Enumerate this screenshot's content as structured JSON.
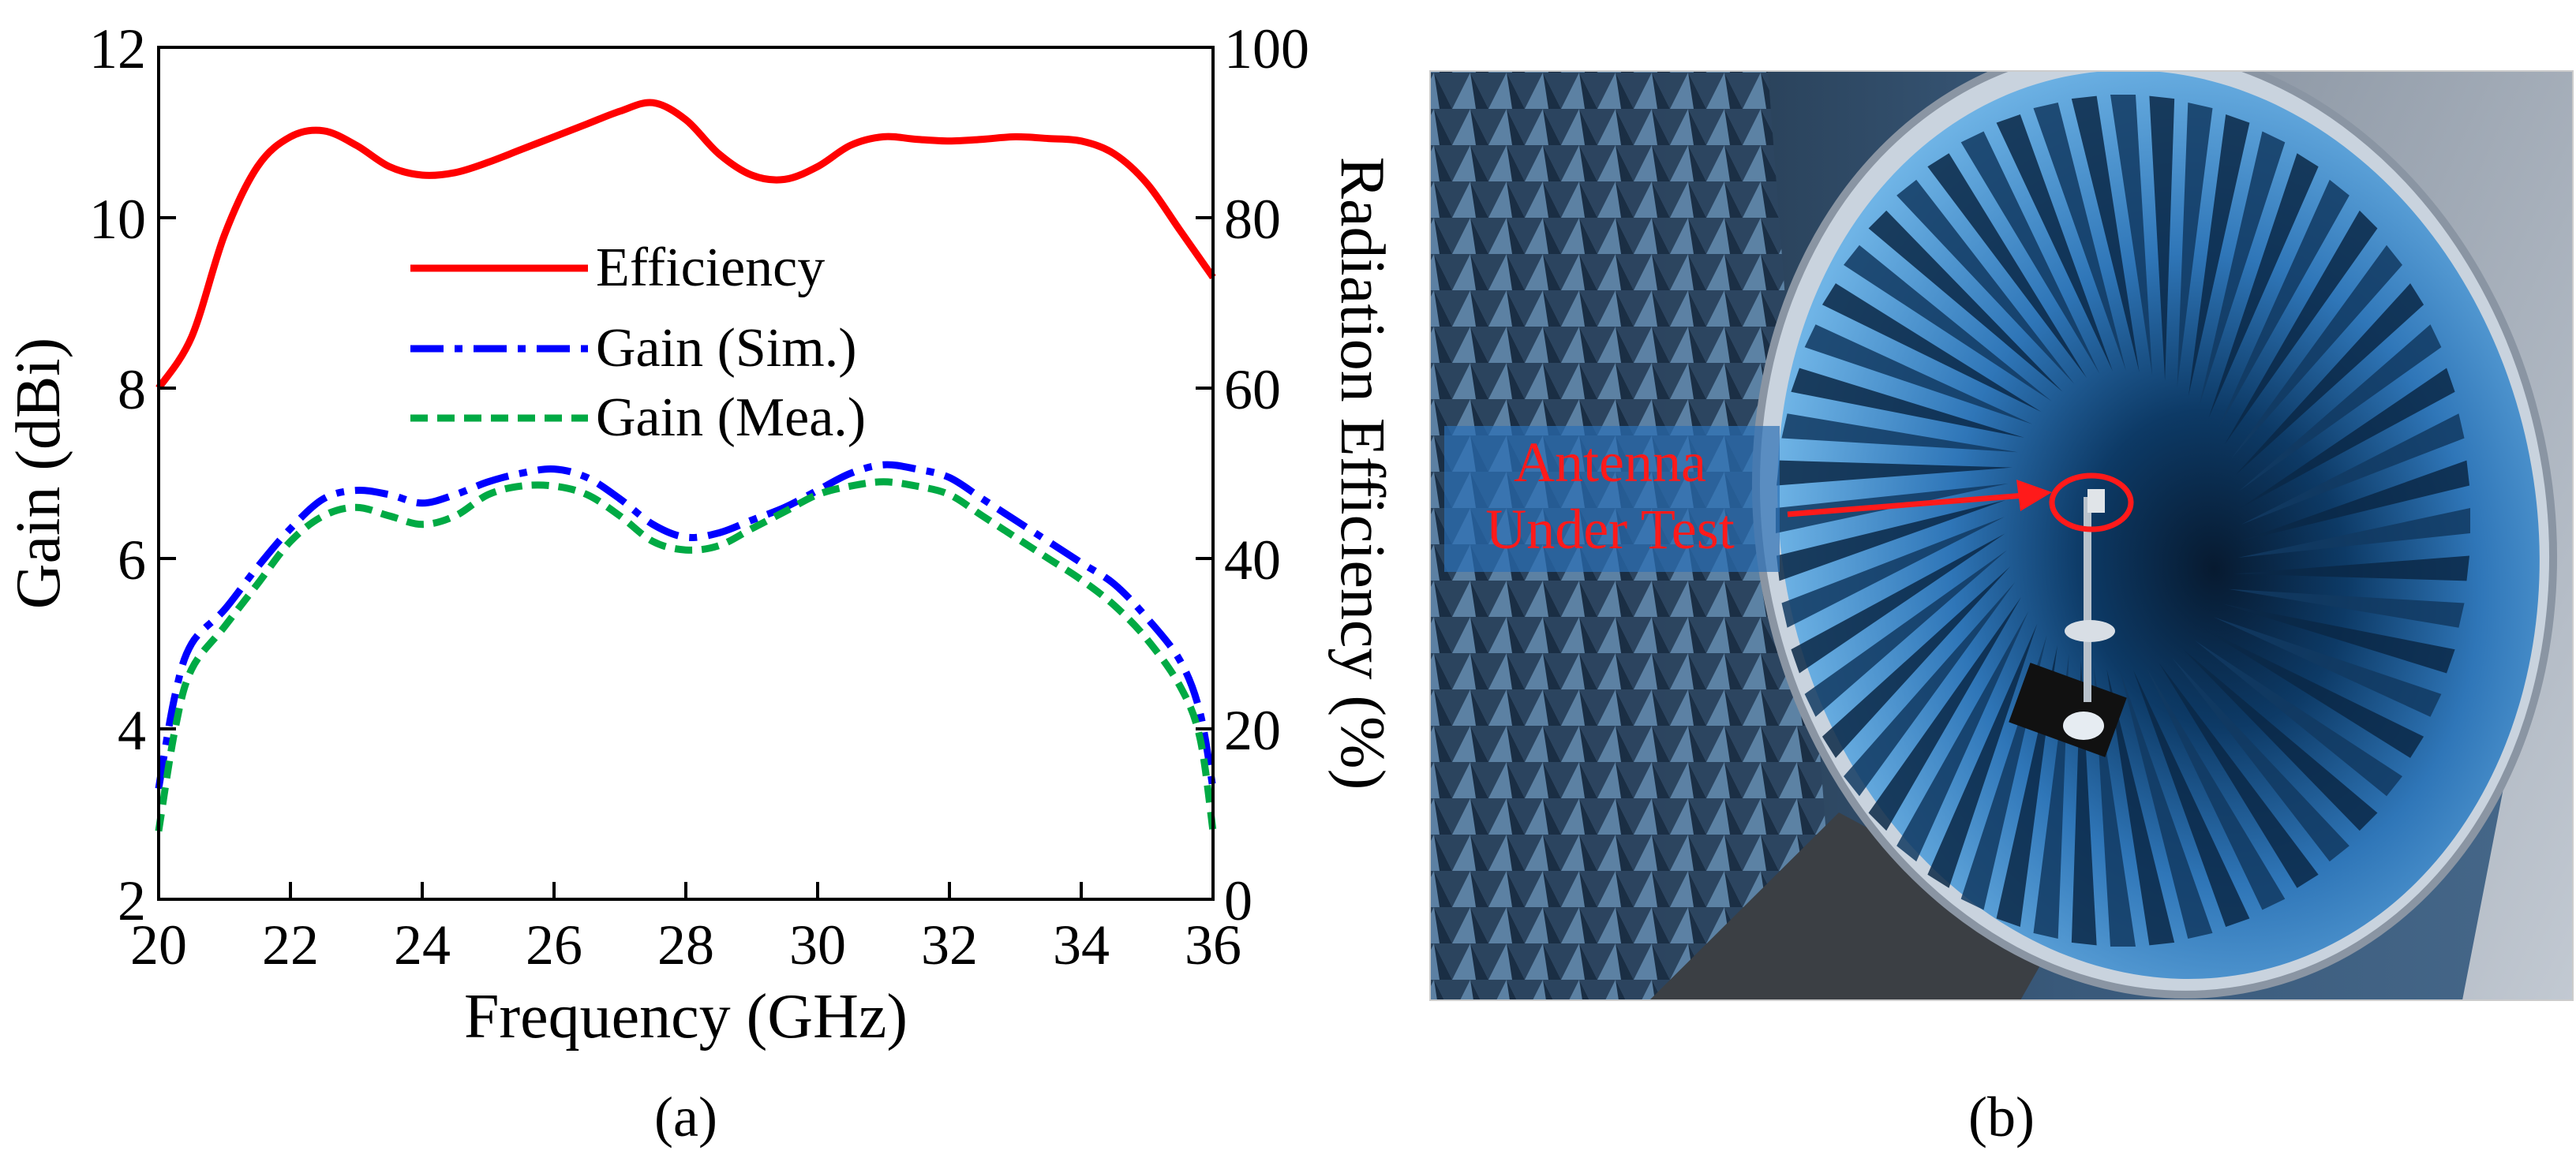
{
  "chart_data": {
    "type": "line",
    "panel_label": "(a)",
    "xlabel": "Frequency (GHz)",
    "ylabel_left": "Gain (dBi)",
    "ylabel_right": "Radiation Efficiency (%)",
    "xlim": [
      20,
      36
    ],
    "ylim_left": [
      2,
      12
    ],
    "ylim_right": [
      0,
      100
    ],
    "xticks": [
      20,
      22,
      24,
      26,
      28,
      30,
      32,
      34,
      36
    ],
    "yticks_left": [
      2,
      4,
      6,
      8,
      10,
      12
    ],
    "yticks_right": [
      0,
      20,
      40,
      60,
      80,
      100
    ],
    "grid": false,
    "legend_position": "upper-center",
    "series": [
      {
        "name": "Efficiency",
        "axis": "right",
        "color": "#ff0000",
        "style": "solid",
        "x": [
          20,
          20.5,
          21,
          21.5,
          22,
          22.5,
          23,
          23.5,
          24,
          24.5,
          25,
          25.5,
          26,
          26.5,
          27,
          27.5,
          28,
          28.5,
          29,
          29.5,
          30,
          30.5,
          31,
          31.5,
          32,
          32.5,
          33,
          33.5,
          34,
          34.5,
          35,
          35.5,
          36
        ],
        "values": [
          60,
          66,
          78,
          86,
          89.5,
          90.2,
          88.5,
          86,
          85,
          85.3,
          86.5,
          88,
          89.5,
          91,
          92.5,
          93.5,
          91.5,
          87.5,
          85,
          84.5,
          86,
          88.5,
          89.5,
          89.2,
          89,
          89.2,
          89.5,
          89.3,
          89,
          87.5,
          84,
          78.5,
          73
        ]
      },
      {
        "name": "Gain (Sim.)",
        "axis": "left",
        "color": "#0000ff",
        "style": "dashdot",
        "x": [
          20,
          20.25,
          20.5,
          21,
          21.5,
          22,
          22.5,
          23,
          23.5,
          24,
          24.5,
          25,
          25.5,
          26,
          26.5,
          27,
          27.5,
          28,
          28.5,
          29,
          29.5,
          30,
          30.5,
          31,
          31.5,
          32,
          32.5,
          33,
          33.5,
          34,
          34.5,
          35,
          35.5,
          35.8,
          36
        ],
        "values": [
          3.3,
          4.4,
          5.0,
          5.4,
          5.9,
          6.35,
          6.7,
          6.8,
          6.75,
          6.65,
          6.75,
          6.9,
          7.0,
          7.05,
          6.95,
          6.7,
          6.4,
          6.25,
          6.3,
          6.45,
          6.6,
          6.8,
          7.0,
          7.1,
          7.05,
          6.95,
          6.7,
          6.45,
          6.2,
          5.95,
          5.7,
          5.3,
          4.8,
          4.2,
          3.3
        ]
      },
      {
        "name": "Gain (Mea.)",
        "axis": "left",
        "color": "#00aa44",
        "style": "dashed",
        "x": [
          20,
          20.25,
          20.5,
          21,
          21.5,
          22,
          22.5,
          23,
          23.5,
          24,
          24.5,
          25,
          25.5,
          26,
          26.5,
          27,
          27.5,
          28,
          28.5,
          29,
          29.5,
          30,
          30.5,
          31,
          31.5,
          32,
          32.5,
          33,
          33.5,
          34,
          34.5,
          35,
          35.5,
          35.8,
          36
        ],
        "values": [
          2.8,
          4.0,
          4.7,
          5.2,
          5.7,
          6.2,
          6.5,
          6.6,
          6.5,
          6.4,
          6.5,
          6.75,
          6.85,
          6.85,
          6.75,
          6.5,
          6.2,
          6.1,
          6.15,
          6.35,
          6.55,
          6.75,
          6.85,
          6.9,
          6.85,
          6.75,
          6.5,
          6.25,
          6.0,
          5.75,
          5.45,
          5.05,
          4.5,
          3.9,
          2.8
        ]
      }
    ]
  },
  "photo": {
    "panel_label": "(b)",
    "annotation": [
      "Antenna",
      "Under Test"
    ],
    "annotation_color": "#ff1a1a"
  }
}
